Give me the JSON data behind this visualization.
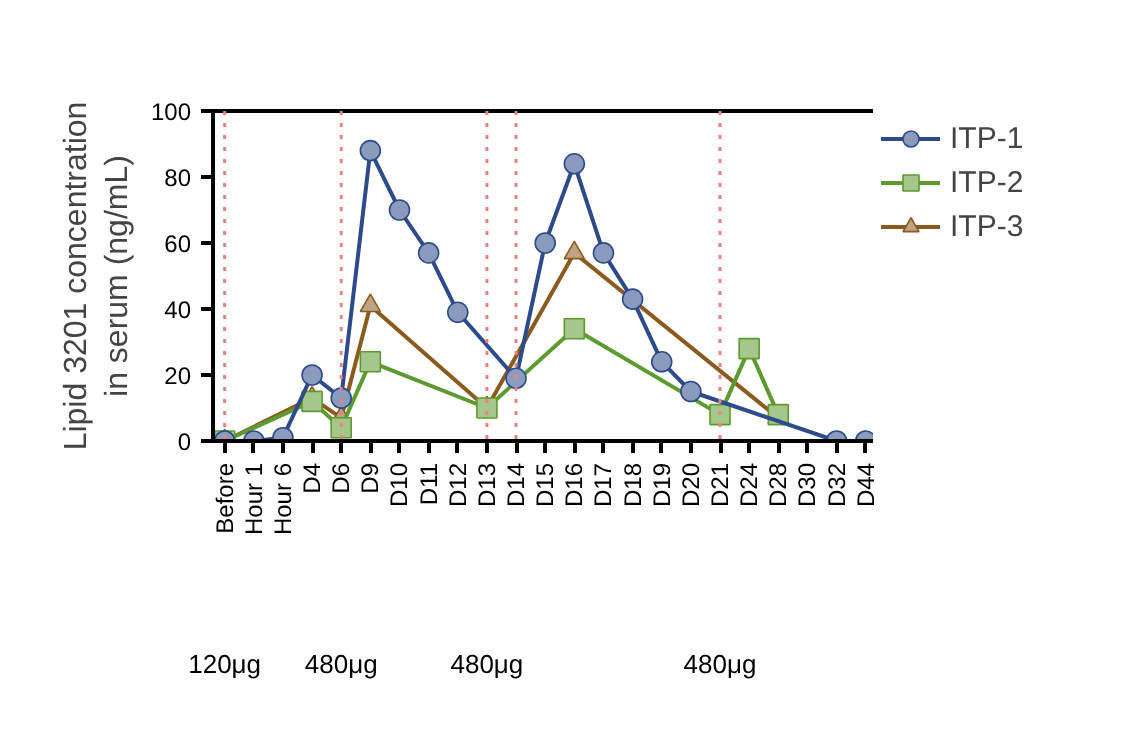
{
  "chart_data": {
    "type": "line",
    "ylabel": "Lipid 3201 concentration\nin serum (ng/mL)",
    "categories": [
      "Before",
      "Hour 1",
      "Hour 6",
      "D4",
      "D6",
      "D9",
      "D10",
      "D11",
      "D12",
      "D13",
      "D14",
      "D15",
      "D16",
      "D17",
      "D18",
      "D19",
      "D20",
      "D21",
      "D24",
      "D28",
      "D30",
      "D32",
      "D44"
    ],
    "series": [
      {
        "name": "ITP-1",
        "color": "#2d4a8a",
        "marker": "circle",
        "x": [
          "Before",
          "Hour 1",
          "Hour 6",
          "D4",
          "D6",
          "D9",
          "D10",
          "D11",
          "D12",
          "D14",
          "D15",
          "D16",
          "D17",
          "D18",
          "D19",
          "D20",
          "D32",
          "D44"
        ],
        "values": [
          0,
          0,
          1,
          20,
          13,
          88,
          70,
          57,
          39,
          19,
          60,
          84,
          57,
          43,
          24,
          15,
          0,
          0
        ]
      },
      {
        "name": "ITP-2",
        "color": "#5d9a2f",
        "marker": "square",
        "x": [
          "Before",
          "D4",
          "D6",
          "D9",
          "D13",
          "D16",
          "D21",
          "D24",
          "D28"
        ],
        "values": [
          0,
          12,
          4,
          24,
          10,
          34,
          8,
          28,
          8
        ]
      },
      {
        "name": "ITP-3",
        "color": "#8b5a1e",
        "marker": "triangle",
        "x": [
          "Before",
          "D4",
          "D6",
          "D9",
          "D13",
          "D16",
          "D28"
        ],
        "values": [
          0,
          13,
          7,
          41,
          10,
          57,
          7
        ]
      }
    ],
    "ylim": [
      0,
      100
    ],
    "yticks": [
      0,
      20,
      40,
      60,
      80,
      100
    ],
    "ref_lines": [
      {
        "axis": "x",
        "value": "Before",
        "color": "#f08080",
        "line_style": "dotted"
      },
      {
        "axis": "x",
        "value": "D6",
        "color": "#f08080",
        "line_style": "dotted"
      },
      {
        "axis": "x",
        "value": "D13",
        "color": "#f08080",
        "line_style": "dotted"
      },
      {
        "axis": "x",
        "value": "D14",
        "color": "#f08080",
        "line_style": "dotted"
      },
      {
        "axis": "x",
        "value": "D21",
        "color": "#f08080",
        "line_style": "dotted"
      }
    ],
    "annotations": [
      "120μg",
      "480μg",
      "480μg",
      "480μg"
    ],
    "legend": "right",
    "grid": false,
    "line_style": "solid"
  }
}
